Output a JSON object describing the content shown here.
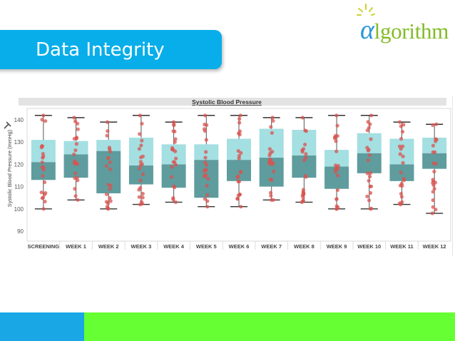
{
  "slide": {
    "title": "Data Integrity",
    "logo_alpha": "α",
    "logo_rest": "lgorithm",
    "colors": {
      "title_bar": "#08aeea",
      "logo_green": "#82bb27",
      "logo_alpha": "#2a96d6",
      "footer_blue": "#19a7e6",
      "footer_green": "#66ff33"
    }
  },
  "chart_data": {
    "type": "box",
    "title": "Systolic Blood Pressure",
    "ylabel": "Systolic Blood Pressure (mmHg)",
    "ylim": [
      86,
      143
    ],
    "yticks": [
      90,
      100,
      110,
      120,
      130,
      140
    ],
    "categories": [
      "SCREENING",
      "WEEK 1",
      "WEEK 2",
      "WEEK 3",
      "WEEK 4",
      "WEEK 5",
      "WEEK 6",
      "WEEK 7",
      "WEEK 8",
      "WEEK 9",
      "WEEK 10",
      "WEEK 11",
      "WEEK 12"
    ],
    "boxes": [
      {
        "min": 100,
        "q1": 113,
        "median": 121,
        "q3": 131,
        "max": 142
      },
      {
        "min": 104,
        "q1": 114,
        "median": 124.5,
        "q3": 130.5,
        "max": 141
      },
      {
        "min": 100,
        "q1": 107,
        "median": 126,
        "q3": 131,
        "max": 139
      },
      {
        "min": 102,
        "q1": 111,
        "median": 119.5,
        "q3": 132,
        "max": 142
      },
      {
        "min": 103,
        "q1": 109.5,
        "median": 120,
        "q3": 129,
        "max": 139
      },
      {
        "min": 101,
        "q1": 105,
        "median": 122,
        "q3": 129,
        "max": 142
      },
      {
        "min": 101,
        "q1": 112.5,
        "median": 122,
        "q3": 131.5,
        "max": 142
      },
      {
        "min": 104,
        "q1": 110,
        "median": 123,
        "q3": 136,
        "max": 141
      },
      {
        "min": 103,
        "q1": 114,
        "median": 124,
        "q3": 135.5,
        "max": 141
      },
      {
        "min": 100,
        "q1": 109,
        "median": 119,
        "q3": 126.5,
        "max": 142
      },
      {
        "min": 100,
        "q1": 116,
        "median": 125,
        "q3": 134,
        "max": 142
      },
      {
        "min": 102,
        "q1": 112.5,
        "median": 120,
        "q3": 131.5,
        "max": 139
      },
      {
        "min": 98,
        "q1": 118,
        "median": 125,
        "q3": 132,
        "max": 138
      }
    ],
    "grid": false,
    "colors": {
      "upper_box": "#a4dfe2",
      "lower_box": "#5f9c9e",
      "points": "#d9534f",
      "whisker": "#555555"
    }
  }
}
